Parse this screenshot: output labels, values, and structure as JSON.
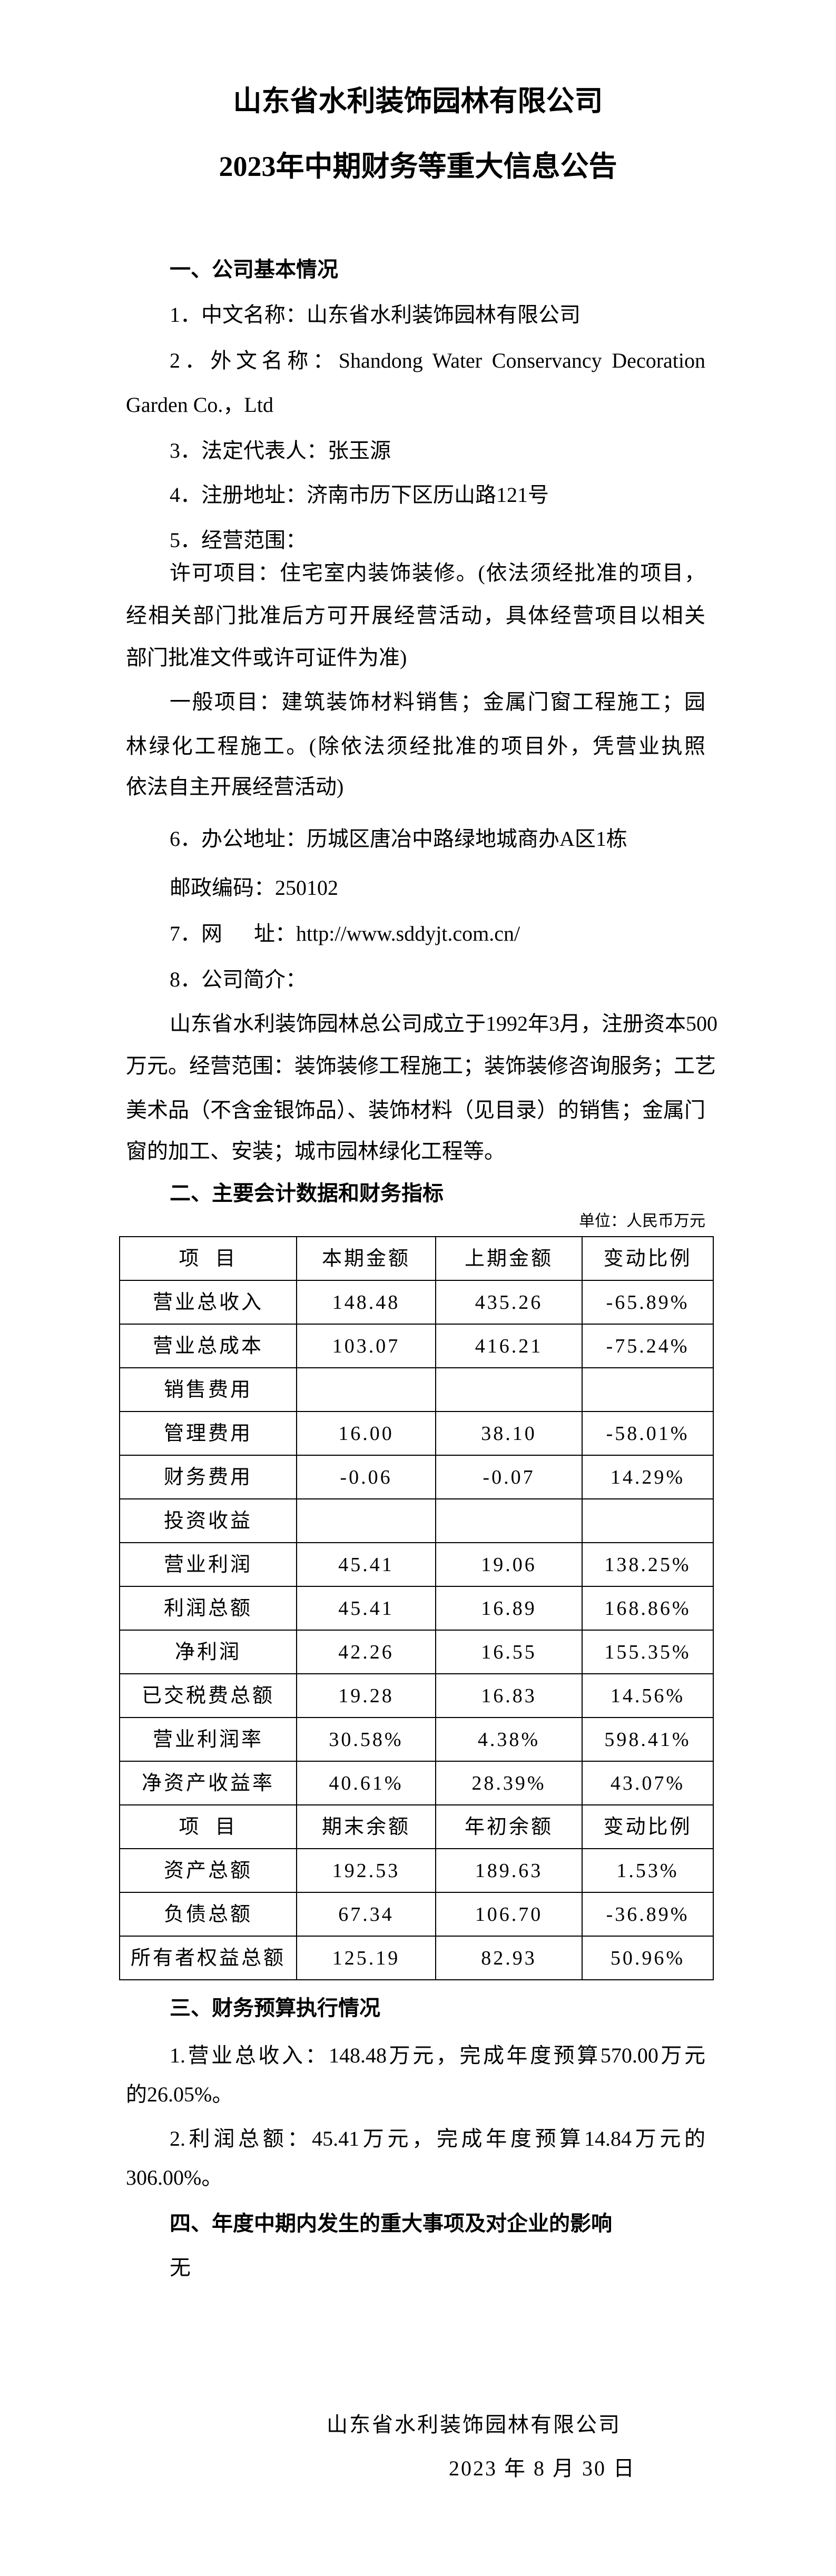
{
  "title": {
    "line1": "山东省水利装饰园林有限公司",
    "line2": "2023年中期财务等重大信息公告"
  },
  "s1": {
    "heading": "一、公司基本情况",
    "item1": "1．中文名称：山东省水利装饰园林有限公司",
    "item2_l1": "2．外文名称：Shandong Water Conservancy Decoration",
    "item2_l2": "Garden Co.，Ltd",
    "item3": "3．法定代表人：张玉源",
    "item4": "4．注册地址：济南市历下区历山路121号",
    "item5": "5．经营范围：",
    "scope1": [
      "许可项目：住宅室内装饰装修。(依法须经批准的项目，",
      "经相关部门批准后方可开展经营活动，具体经营项目以相关",
      "部门批准文件或许可证件为准)"
    ],
    "scope2": [
      "一般项目：建筑装饰材料销售；金属门窗工程施工；园",
      "林绿化工程施工。(除依法须经批准的项目外，凭营业执照",
      "依法自主开展经营活动)"
    ],
    "item6": "6．办公地址：历城区唐冶中路绿地城商办A区1栋",
    "postcode": "邮政编码：250102",
    "item7": "7．网      址：http://www.sddyjt.com.cn/",
    "item8": "8．公司简介：",
    "intro": [
      "山东省水利装饰园林总公司成立于1992年3月，注册资本500",
      "万元。经营范围：装饰装修工程施工；装饰装修咨询服务；工艺",
      "美术品（不含金银饰品）、装饰材料（见目录）的销售；金属门",
      "窗的加工、安装；城市园林绿化工程等。"
    ]
  },
  "s2": {
    "heading": "二、主要会计数据和财务指标",
    "unit": "单位：人民币万元",
    "rows": [
      [
        "项  目",
        "本期金额",
        "上期金额",
        "变动比例"
      ],
      [
        "营业总收入",
        "148.48",
        "435.26",
        "-65.89%"
      ],
      [
        "营业总成本",
        "103.07",
        "416.21",
        "-75.24%"
      ],
      [
        "销售费用",
        "",
        "",
        ""
      ],
      [
        "管理费用",
        "16.00",
        "38.10",
        "-58.01%"
      ],
      [
        "财务费用",
        "-0.06",
        "-0.07",
        "14.29%"
      ],
      [
        "投资收益",
        "",
        "",
        ""
      ],
      [
        "营业利润",
        "45.41",
        "19.06",
        "138.25%"
      ],
      [
        "利润总额",
        "45.41",
        "16.89",
        "168.86%"
      ],
      [
        "净利润",
        "42.26",
        "16.55",
        "155.35%"
      ],
      [
        "已交税费总额",
        "19.28",
        "16.83",
        "14.56%"
      ],
      [
        "营业利润率",
        "30.58%",
        "4.38%",
        "598.41%"
      ],
      [
        "净资产收益率",
        "40.61%",
        "28.39%",
        "43.07%"
      ],
      [
        "项  目",
        "期末余额",
        "年初余额",
        "变动比例"
      ],
      [
        "资产总额",
        "192.53",
        "189.63",
        "1.53%"
      ],
      [
        "负债总额",
        "67.34",
        "106.70",
        "-36.89%"
      ],
      [
        "所有者权益总额",
        "125.19",
        "82.93",
        "50.96%"
      ]
    ]
  },
  "s3": {
    "heading": "三、财务预算执行情况",
    "p1": [
      "1.营业总收入：148.48万元，完成年度预算570.00万元",
      "的26.05%。"
    ],
    "p2": [
      "2.利润总额：45.41万元，完成年度预算14.84万元的",
      "306.00%。"
    ]
  },
  "s4": {
    "heading": "四、年度中期内发生的重大事项及对企业的影响",
    "body": "无"
  },
  "signature": {
    "company": "山东省水利装饰园林有限公司",
    "date": "2023 年 8 月 30 日"
  }
}
